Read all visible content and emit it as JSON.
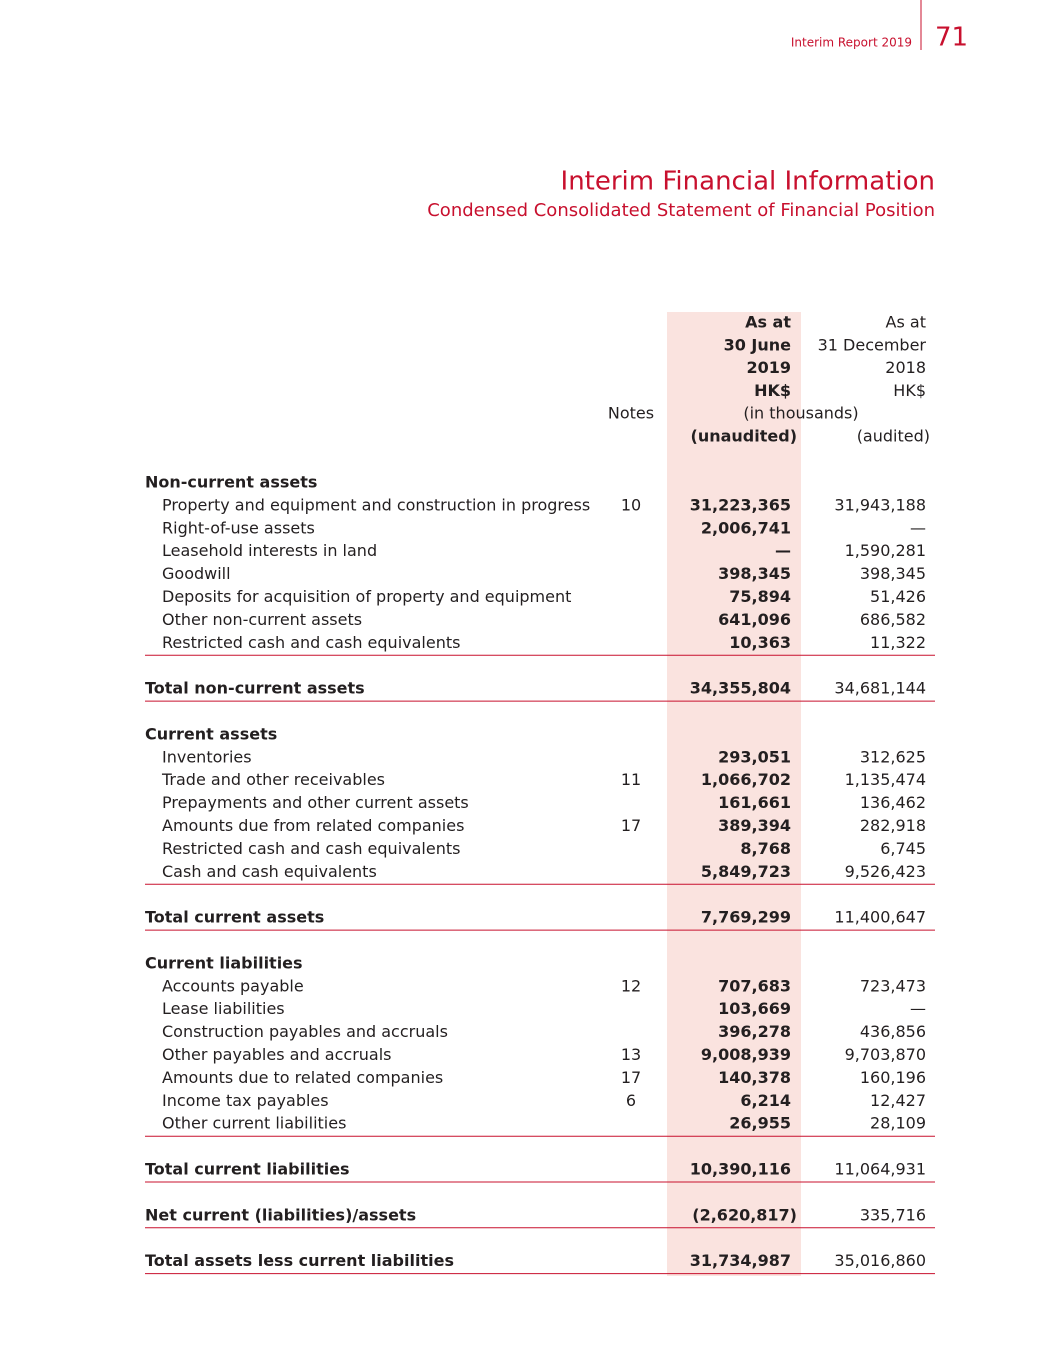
{
  "header": {
    "report": "Interim Report 2019",
    "page": "71"
  },
  "title": "Interim Financial Information",
  "subtitle": "Condensed Consolidated Statement of Financial Position",
  "table": {
    "col_2019": [
      "As at",
      "30 June",
      "2019",
      "HK$"
    ],
    "col_2018": [
      "As at",
      "31 December",
      "2018",
      "HK$"
    ],
    "notes_header": "Notes",
    "unit": "(in thousands)",
    "status": [
      "(unaudited)",
      "(audited)"
    ],
    "blocks": [
      {
        "heading": "Non-current assets",
        "rows": [
          {
            "label": "Property and equipment and construction in progress",
            "note": "10",
            "a": "31,223,365",
            "b": "31,943,188"
          },
          {
            "label": "Right-of-use assets",
            "a": "2,006,741",
            "b": "—"
          },
          {
            "label": "Leasehold interests in land",
            "a": "—",
            "b": "1,590,281"
          },
          {
            "label": "Goodwill",
            "a": "398,345",
            "b": "398,345"
          },
          {
            "label": "Deposits for acquisition of property and equipment",
            "a": "75,894",
            "b": "51,426"
          },
          {
            "label": "Other non-current assets",
            "a": "641,096",
            "b": "686,582"
          },
          {
            "label": "Restricted cash and cash equivalents",
            "a": "10,363",
            "b": "11,322"
          }
        ],
        "total": {
          "label": "Total non-current assets",
          "a": "34,355,804",
          "b": "34,681,144"
        }
      },
      {
        "heading": "Current assets",
        "rows": [
          {
            "label": "Inventories",
            "a": "293,051",
            "b": "312,625"
          },
          {
            "label": "Trade and other receivables",
            "note": "11",
            "a": "1,066,702",
            "b": "1,135,474"
          },
          {
            "label": "Prepayments and other current assets",
            "a": "161,661",
            "b": "136,462"
          },
          {
            "label": "Amounts due from related companies",
            "note": "17",
            "a": "389,394",
            "b": "282,918"
          },
          {
            "label": "Restricted cash and cash equivalents",
            "a": "8,768",
            "b": "6,745"
          },
          {
            "label": "Cash and cash equivalents",
            "a": "5,849,723",
            "b": "9,526,423"
          }
        ],
        "total": {
          "label": "Total current assets",
          "a": "7,769,299",
          "b": "11,400,647"
        }
      },
      {
        "heading": "Current liabilities",
        "rows": [
          {
            "label": "Accounts payable",
            "note": "12",
            "a": "707,683",
            "b": "723,473"
          },
          {
            "label": "Lease liabilities",
            "a": "103,669",
            "b": "—"
          },
          {
            "label": "Construction payables and accruals",
            "a": "396,278",
            "b": "436,856"
          },
          {
            "label": "Other payables and accruals",
            "note": "13",
            "a": "9,008,939",
            "b": "9,703,870"
          },
          {
            "label": "Amounts due to related companies",
            "note": "17",
            "a": "140,378",
            "b": "160,196"
          },
          {
            "label": "Income tax payables",
            "note": "6",
            "a": "6,214",
            "b": "12,427"
          },
          {
            "label": "Other current liabilities",
            "a": "26,955",
            "b": "28,109"
          }
        ],
        "total": {
          "label": "Total current liabilities",
          "a": "10,390,116",
          "b": "11,064,931"
        }
      },
      {
        "total": {
          "label": "Net current (liabilities)/assets",
          "a": "(2,620,817)",
          "b": "335,716"
        }
      },
      {
        "total": {
          "label": "Total assets less current liabilities",
          "a": "31,734,987",
          "b": "35,016,860"
        }
      }
    ]
  }
}
